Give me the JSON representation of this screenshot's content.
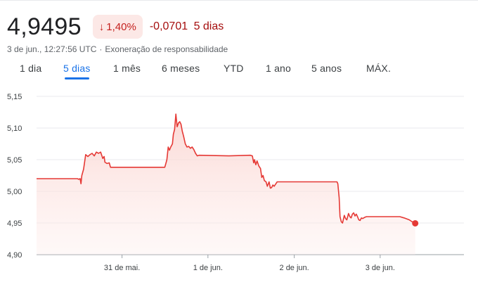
{
  "quote": {
    "price": "4,9495",
    "change_percent": "1,40%",
    "change_value": "-0,0701",
    "change_period": "5 dias",
    "timestamp": "3 de jun., 12:27:56 UTC",
    "separator": "·",
    "disclaimer": "Exoneração de responsabilidade"
  },
  "colors": {
    "line": "#e53935",
    "fill": "#fce8e6",
    "badge_bg": "#fce8e6",
    "badge_text": "#c5221f",
    "active_tab": "#1a73e8"
  },
  "icons": {
    "badge_arrow": "arrow-down-icon"
  },
  "tabs": [
    {
      "label": "1 dia",
      "active": false
    },
    {
      "label": "5 dias",
      "active": true
    },
    {
      "label": "1 mês",
      "active": false
    },
    {
      "label": "6 meses",
      "active": false
    },
    {
      "label": "YTD",
      "active": false
    },
    {
      "label": "1 ano",
      "active": false
    },
    {
      "label": "5 anos",
      "active": false
    },
    {
      "label": "MÁX.",
      "active": false
    }
  ],
  "chart_data": {
    "type": "line",
    "ylim": [
      4.9,
      5.15
    ],
    "yticks": [
      {
        "value": 5.15,
        "label": "5,15"
      },
      {
        "value": 5.1,
        "label": "5,10"
      },
      {
        "value": 5.05,
        "label": "5,05"
      },
      {
        "value": 5.0,
        "label": "5,00"
      },
      {
        "value": 4.95,
        "label": "4,95"
      },
      {
        "value": 4.9,
        "label": "4,90"
      }
    ],
    "xlim": [
      0,
      100
    ],
    "xticks": [
      {
        "value": 20.0,
        "label": "31 de mai."
      },
      {
        "value": 40.1,
        "label": "1 de jun."
      },
      {
        "value": 60.3,
        "label": "2 de jun."
      },
      {
        "value": 80.4,
        "label": "3 de jun."
      }
    ],
    "grid": true,
    "area_fill": true,
    "last_point_marker": true,
    "points": [
      [
        0,
        5.02
      ],
      [
        9.6,
        5.02
      ],
      [
        9.8,
        5.019
      ],
      [
        10.2,
        5.02
      ],
      [
        10.4,
        5.012
      ],
      [
        10.6,
        5.025
      ],
      [
        11.0,
        5.035
      ],
      [
        11.5,
        5.058
      ],
      [
        12.0,
        5.055
      ],
      [
        12.5,
        5.058
      ],
      [
        13.0,
        5.06
      ],
      [
        13.5,
        5.056
      ],
      [
        14.0,
        5.062
      ],
      [
        14.5,
        5.06
      ],
      [
        15.0,
        5.062
      ],
      [
        15.5,
        5.052
      ],
      [
        15.8,
        5.055
      ],
      [
        16.0,
        5.046
      ],
      [
        16.5,
        5.044
      ],
      [
        17.0,
        5.045
      ],
      [
        17.3,
        5.038
      ],
      [
        18.0,
        5.038
      ],
      [
        30.0,
        5.038
      ],
      [
        30.3,
        5.045
      ],
      [
        30.5,
        5.05
      ],
      [
        30.8,
        5.07
      ],
      [
        31.1,
        5.065
      ],
      [
        31.4,
        5.07
      ],
      [
        31.8,
        5.075
      ],
      [
        32.0,
        5.09
      ],
      [
        32.3,
        5.098
      ],
      [
        32.6,
        5.122
      ],
      [
        32.9,
        5.102
      ],
      [
        33.2,
        5.108
      ],
      [
        33.5,
        5.11
      ],
      [
        33.8,
        5.106
      ],
      [
        34.1,
        5.095
      ],
      [
        34.4,
        5.087
      ],
      [
        34.8,
        5.075
      ],
      [
        35.2,
        5.07
      ],
      [
        35.6,
        5.071
      ],
      [
        36.0,
        5.068
      ],
      [
        36.4,
        5.07
      ],
      [
        36.8,
        5.066
      ],
      [
        37.2,
        5.06
      ],
      [
        37.6,
        5.056
      ],
      [
        38.0,
        5.057
      ],
      [
        45.0,
        5.056
      ],
      [
        50.0,
        5.057
      ],
      [
        50.5,
        5.056
      ],
      [
        50.8,
        5.045
      ],
      [
        51.0,
        5.05
      ],
      [
        51.3,
        5.042
      ],
      [
        51.6,
        5.048
      ],
      [
        52.0,
        5.04
      ],
      [
        52.4,
        5.036
      ],
      [
        52.7,
        5.022
      ],
      [
        53.0,
        5.025
      ],
      [
        53.3,
        5.017
      ],
      [
        53.7,
        5.015
      ],
      [
        54.0,
        5.008
      ],
      [
        54.4,
        5.015
      ],
      [
        54.7,
        5.005
      ],
      [
        55.0,
        5.006
      ],
      [
        55.3,
        5.01
      ],
      [
        55.6,
        5.008
      ],
      [
        56.0,
        5.012
      ],
      [
        56.3,
        5.015
      ],
      [
        60.0,
        5.015
      ],
      [
        70.0,
        5.015
      ],
      [
        70.3,
        5.015
      ],
      [
        70.5,
        5.012
      ],
      [
        70.8,
        4.99
      ],
      [
        71.0,
        4.96
      ],
      [
        71.3,
        4.952
      ],
      [
        71.6,
        4.95
      ],
      [
        72.0,
        4.962
      ],
      [
        72.3,
        4.957
      ],
      [
        72.6,
        4.955
      ],
      [
        73.0,
        4.965
      ],
      [
        73.3,
        4.96
      ],
      [
        73.6,
        4.958
      ],
      [
        73.9,
        4.964
      ],
      [
        74.2,
        4.966
      ],
      [
        74.5,
        4.961
      ],
      [
        74.8,
        4.964
      ],
      [
        75.1,
        4.96
      ],
      [
        75.4,
        4.955
      ],
      [
        75.7,
        4.954
      ],
      [
        76.0,
        4.958
      ],
      [
        76.3,
        4.957
      ],
      [
        76.8,
        4.959
      ],
      [
        77.2,
        4.96
      ],
      [
        85.0,
        4.96
      ],
      [
        86.0,
        4.958
      ],
      [
        87.2,
        4.955
      ],
      [
        88.3,
        4.95
      ],
      [
        88.6,
        4.9495
      ]
    ]
  }
}
